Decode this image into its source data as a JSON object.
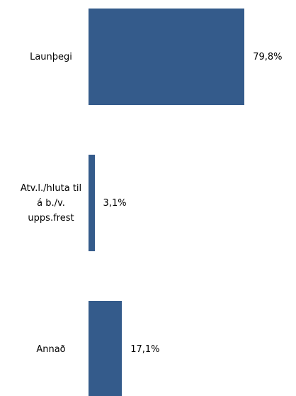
{
  "chart_data": {
    "type": "bar",
    "orientation": "horizontal",
    "categories": [
      "Launþegi",
      "Atv.l./hluta til á b./v. upps.frest",
      "Annað"
    ],
    "values": [
      79.8,
      3.1,
      17.1
    ],
    "value_labels": [
      "79,8%",
      "3,1%",
      "17,1%"
    ],
    "color": "#345b8b",
    "xlim": [
      0,
      100
    ]
  }
}
